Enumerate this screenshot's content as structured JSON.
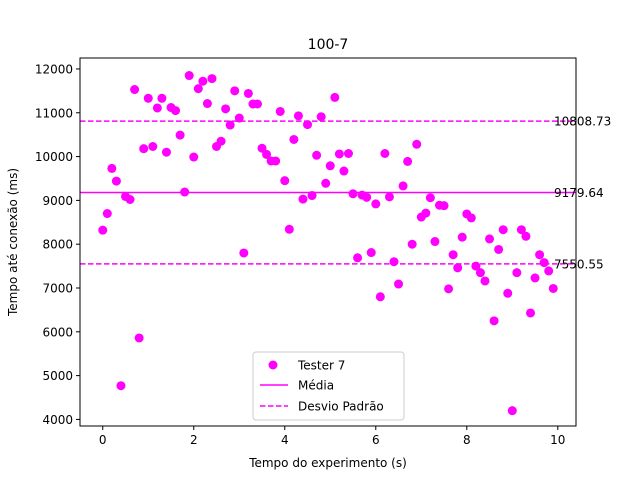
{
  "chart_data": {
    "type": "scatter",
    "title": "100-7",
    "xlabel": "Tempo do experimento (s)",
    "ylabel": "Tempo até conexão (ms)",
    "xlim": [
      -0.5,
      10.4
    ],
    "ylim": [
      3850,
      12250
    ],
    "xticks": [
      0,
      2,
      4,
      6,
      8,
      10
    ],
    "yticks": [
      4000,
      5000,
      6000,
      7000,
      8000,
      9000,
      10000,
      11000,
      12000
    ],
    "grid": false,
    "legend_position": "lower-center",
    "colors": {
      "series": "#ff00ff"
    },
    "series": [
      {
        "name": "Tester 7",
        "x": [
          0.0,
          0.1,
          0.2,
          0.3,
          0.4,
          0.5,
          0.6,
          0.7,
          0.8,
          0.9,
          1.0,
          1.1,
          1.2,
          1.3,
          1.4,
          1.5,
          1.6,
          1.7,
          1.8,
          1.9,
          2.0,
          2.1,
          2.2,
          2.3,
          2.4,
          2.5,
          2.6,
          2.7,
          2.8,
          2.9,
          3.0,
          3.1,
          3.2,
          3.3,
          3.4,
          3.5,
          3.6,
          3.7,
          3.8,
          3.9,
          4.0,
          4.1,
          4.2,
          4.3,
          4.4,
          4.5,
          4.6,
          4.7,
          4.8,
          4.9,
          5.0,
          5.1,
          5.2,
          5.3,
          5.4,
          5.5,
          5.6,
          5.7,
          5.8,
          5.9,
          6.0,
          6.1,
          6.2,
          6.3,
          6.4,
          6.5,
          6.6,
          6.7,
          6.8,
          6.9,
          7.0,
          7.1,
          7.2,
          7.3,
          7.4,
          7.5,
          7.6,
          7.7,
          7.8,
          7.9,
          8.0,
          8.1,
          8.2,
          8.3,
          8.4,
          8.5,
          8.6,
          8.7,
          8.8,
          8.9,
          9.0,
          9.1,
          9.2,
          9.3,
          9.4,
          9.5,
          9.6,
          9.7,
          9.8,
          9.9
        ],
        "y": [
          8320,
          8700,
          9730,
          9440,
          4770,
          9090,
          9020,
          11530,
          5860,
          10180,
          11330,
          10230,
          11110,
          11330,
          10100,
          11120,
          11050,
          10490,
          9190,
          11850,
          9990,
          11550,
          11720,
          11210,
          11780,
          10230,
          10350,
          11090,
          10720,
          11500,
          10880,
          7800,
          11440,
          11200,
          11200,
          10190,
          10050,
          9900,
          9900,
          11030,
          9450,
          8340,
          10390,
          10930,
          9030,
          10730,
          9110,
          10030,
          10910,
          9390,
          9790,
          11350,
          10060,
          9670,
          10070,
          9150,
          7690,
          9120,
          9070,
          7810,
          8920,
          6800,
          10070,
          9080,
          7600,
          7090,
          9330,
          9890,
          8000,
          10280,
          8620,
          8710,
          9060,
          8060,
          8890,
          8880,
          6980,
          7760,
          7460,
          8160,
          8690,
          8600,
          7500,
          7350,
          7160,
          8120,
          6250,
          7880,
          8330,
          6880,
          4200,
          7350,
          8330,
          8180,
          6430,
          7230,
          7760,
          7580,
          7390,
          6990
        ]
      }
    ],
    "lines": [
      {
        "name": "Média",
        "y": 9179.64,
        "label": "9179.64",
        "style": "solid"
      },
      {
        "name": "Desvio Padrão",
        "y": 10808.73,
        "label": "10808.73",
        "style": "dashed"
      },
      {
        "name": "Desvio Padrão",
        "y": 7550.55,
        "label": "7550.55",
        "style": "dashed"
      }
    ],
    "legend": [
      {
        "label": "Tester 7",
        "marker": "circle"
      },
      {
        "label": "Média",
        "marker": "solid-line"
      },
      {
        "label": "Desvio Padrão",
        "marker": "dashed-line"
      }
    ]
  }
}
